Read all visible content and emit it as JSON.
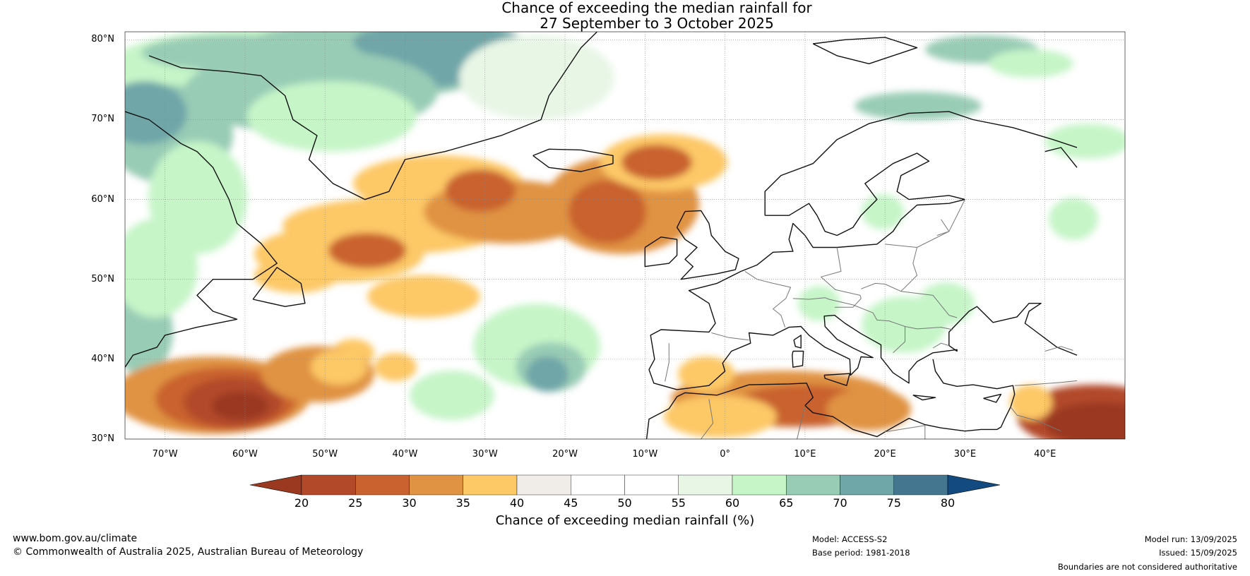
{
  "title_line1": "Chance of exceeding the median rainfall for",
  "title_line2": "27 September to 3 October 2025",
  "lat_labels": [
    "80°N",
    "70°N",
    "60°N",
    "50°N",
    "40°N",
    "30°N"
  ],
  "lon_labels": [
    "70°W",
    "60°W",
    "50°W",
    "40°W",
    "30°W",
    "20°W",
    "10°W",
    "0°",
    "10°E",
    "20°E",
    "30°E",
    "40°E"
  ],
  "colorbar": {
    "ticks": [
      "20",
      "25",
      "30",
      "35",
      "40",
      "45",
      "50",
      "55",
      "60",
      "65",
      "70",
      "75",
      "80"
    ],
    "colors": [
      "#9a3820",
      "#b24a2a",
      "#c9622e",
      "#e09342",
      "#fdc866",
      "#f0ece8",
      "#ffffff",
      "#ffffff",
      "#e8f6e6",
      "#c6f5c8",
      "#99ccb5",
      "#6fa6a8",
      "#44778f",
      "#134b80"
    ],
    "label": "Chance of exceeding median rainfall (%)"
  },
  "footer": {
    "website": "www.bom.gov.au/climate",
    "copyright": "© Commonwealth of Australia 2025, Australian Bureau of Meteorology",
    "model": "Model: ACCESS-S2",
    "base_period": "Base period: 1981-2018",
    "model_run": "Model run: 13/09/2025",
    "issued": "Issued: 15/09/2025",
    "disclaimer": "Boundaries are not considered authoritative"
  }
}
